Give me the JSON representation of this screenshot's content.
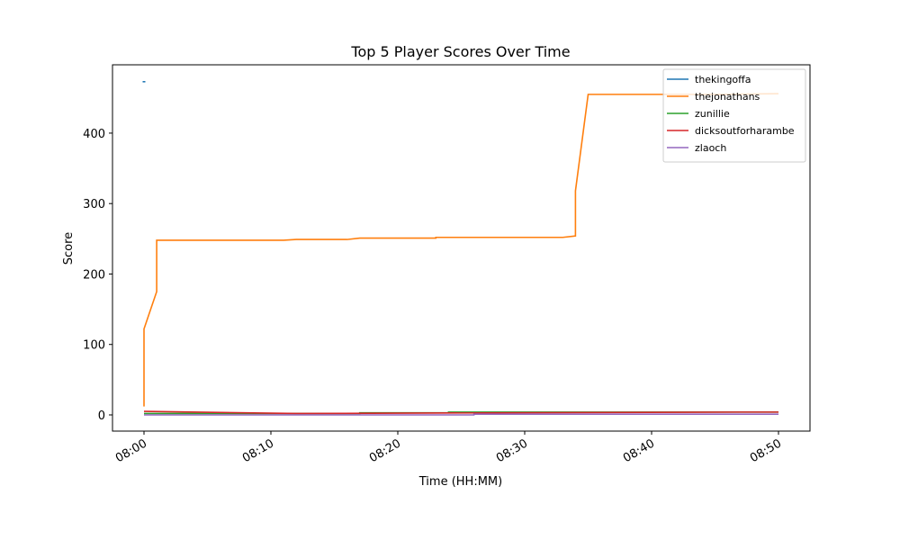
{
  "chart_data": {
    "type": "line",
    "title": "Top 5 Player Scores Over Time",
    "xlabel": "Time (HH:MM)",
    "ylabel": "Score",
    "xticks": [
      "08:00",
      "08:10",
      "08:20",
      "08:30",
      "08:40",
      "08:50"
    ],
    "ylim": [
      -23,
      497
    ],
    "yticks": [
      0,
      100,
      200,
      300,
      400
    ],
    "grid": false,
    "legend": "upper right",
    "series": [
      {
        "name": "thekingoffa",
        "color": "#1f77b4",
        "x": [
          "08:00"
        ],
        "values": [
          473
        ]
      },
      {
        "name": "thejonathans",
        "color": "#ff7f0e",
        "x": [
          "08:00",
          "08:00",
          "08:01",
          "08:01",
          "08:11",
          "08:12",
          "08:16",
          "08:17",
          "08:23",
          "08:23",
          "08:33",
          "08:34",
          "08:34",
          "08:35",
          "08:45",
          "08:50"
        ],
        "values": [
          12,
          122,
          175,
          248,
          248,
          249,
          249,
          251,
          251,
          252,
          252,
          254,
          318,
          455,
          455,
          456
        ]
      },
      {
        "name": "zunillie",
        "color": "#2ca02c",
        "x": [
          "08:00",
          "08:17",
          "08:17",
          "08:24",
          "08:24",
          "08:50"
        ],
        "values": [
          2,
          2,
          3,
          3,
          4,
          4
        ]
      },
      {
        "name": "dicksoutforharambe",
        "color": "#d62728",
        "x": [
          "08:00",
          "08:12",
          "08:47",
          "08:50"
        ],
        "values": [
          5,
          2,
          4,
          4
        ]
      },
      {
        "name": "zlaoch",
        "color": "#9467bd",
        "x": [
          "08:00",
          "08:26",
          "08:26",
          "08:50"
        ],
        "values": [
          0,
          0,
          1,
          1
        ]
      }
    ]
  }
}
